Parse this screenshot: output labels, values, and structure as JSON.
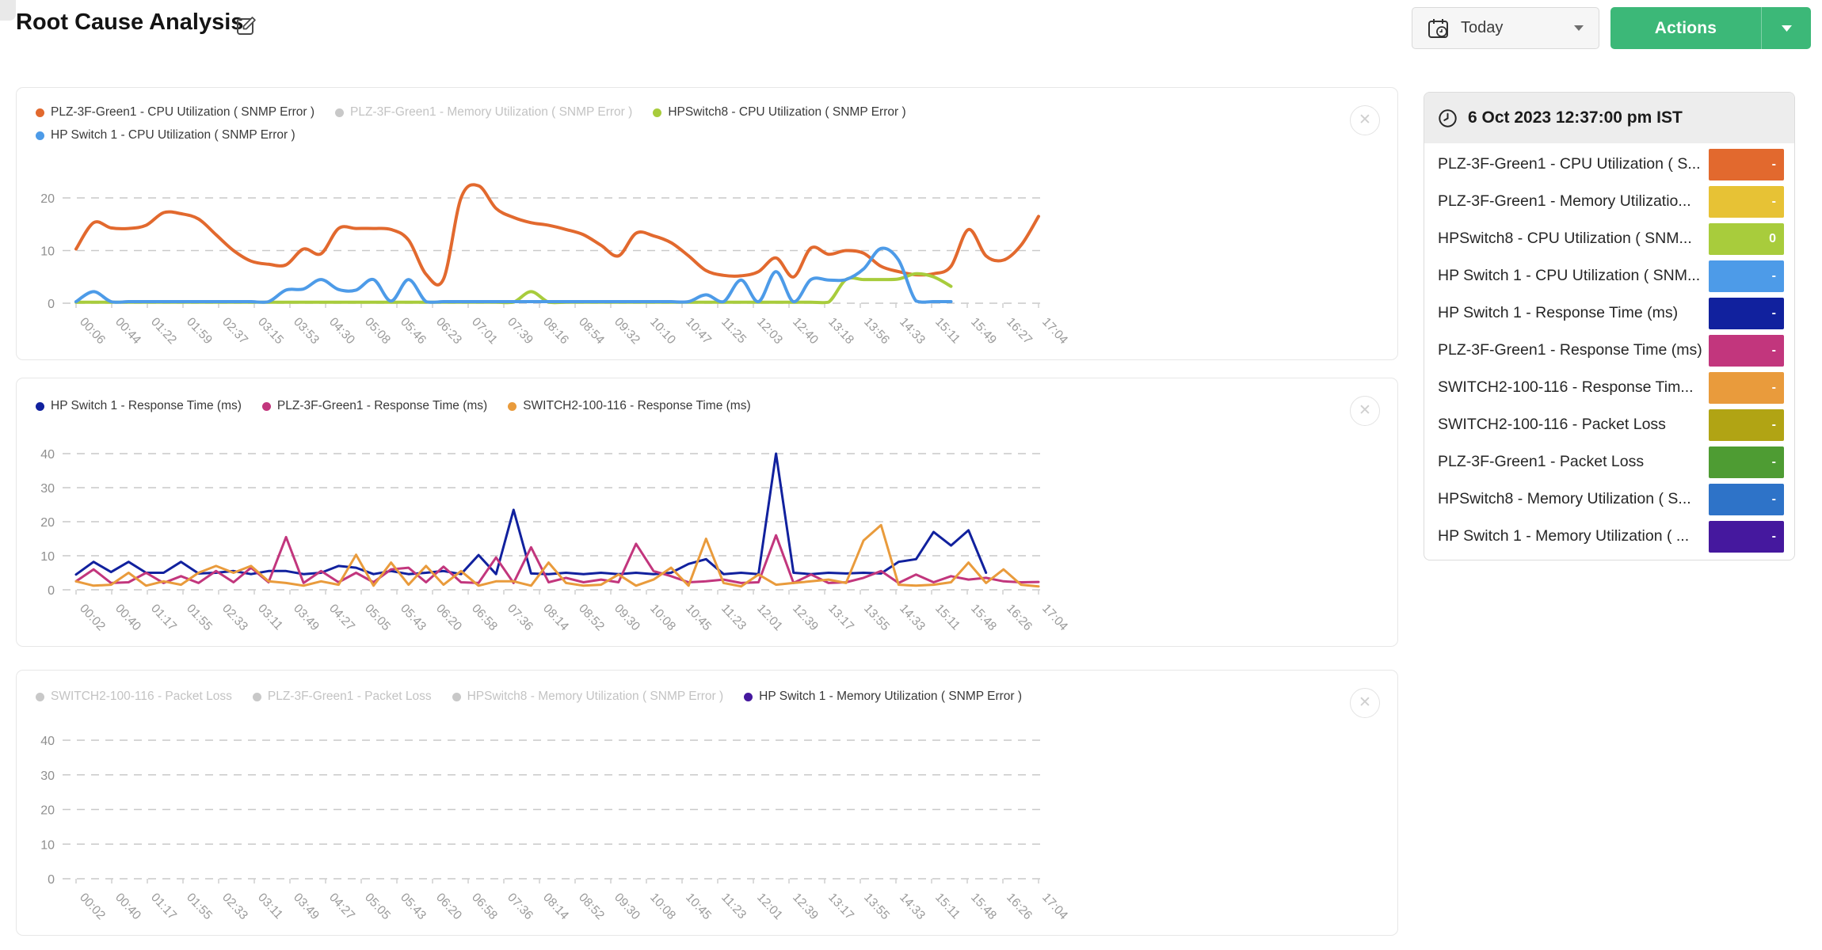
{
  "header": {
    "title": "Root Cause Analysis",
    "time_range_label": "Today",
    "actions_label": "Actions"
  },
  "panel": {
    "timestamp": "6 Oct 2023 12:37:00 pm IST",
    "rows": [
      {
        "label": "PLZ-3F-Green1 - CPU Utilization ( S...",
        "value": "-",
        "color": "#e2692e"
      },
      {
        "label": "PLZ-3F-Green1 - Memory Utilizatio...",
        "value": "-",
        "color": "#e7c235"
      },
      {
        "label": "HPSwitch8 - CPU Utilization ( SNM...",
        "value": "0",
        "color": "#a8cc3c"
      },
      {
        "label": "HP Switch 1 - CPU Utilization ( SNM...",
        "value": "-",
        "color": "#4d9be8"
      },
      {
        "label": "HP Switch 1 - Response Time (ms)",
        "value": "-",
        "color": "#11219e"
      },
      {
        "label": "PLZ-3F-Green1 - Response Time (ms)",
        "value": "-",
        "color": "#c2367d"
      },
      {
        "label": "SWITCH2-100-116 - Response Tim...",
        "value": "-",
        "color": "#e99b3c"
      },
      {
        "label": "SWITCH2-100-116 - Packet Loss",
        "value": "-",
        "color": "#b1a414"
      },
      {
        "label": "PLZ-3F-Green1 - Packet Loss",
        "value": "-",
        "color": "#4e9c33"
      },
      {
        "label": "HPSwitch8 - Memory Utilization ( S...",
        "value": "-",
        "color": "#2e73c8"
      },
      {
        "label": "HP Switch 1 - Memory Utilization ( ...",
        "value": "-",
        "color": "#45189e"
      }
    ]
  },
  "chart_data": [
    {
      "type": "line",
      "smooth": true,
      "ylim": [
        0,
        20
      ],
      "yticks": [
        0,
        10,
        20
      ],
      "grid": "dashed-horizontal",
      "legend_position": "top-left",
      "x_labels": [
        "00:06",
        "00:44",
        "01:22",
        "01:59",
        "02:37",
        "03:15",
        "03:53",
        "04:30",
        "05:08",
        "05:46",
        "06:23",
        "07:01",
        "07:39",
        "08:16",
        "08:54",
        "09:32",
        "10:10",
        "10:47",
        "11:25",
        "12:03",
        "12:40",
        "13:18",
        "13:56",
        "14:33",
        "15:11",
        "15:49",
        "16:27",
        "17:04"
      ],
      "series": [
        {
          "name": "PLZ-3F-Green1 - CPU Utilization ( SNMP Error )",
          "color": "#e2692e",
          "disabled": false,
          "values": [
            10.3,
            15.3,
            14.3,
            14.2,
            14.8,
            17.2,
            17.0,
            16.0,
            13.0,
            10.0,
            8.0,
            7.4,
            7.3,
            10.3,
            9.4,
            14.2,
            14.2,
            14.2,
            14.0,
            12.0,
            5.5,
            4.6,
            20.0,
            22.3,
            18.0,
            16.3,
            15.3,
            14.8,
            14.0,
            13.0,
            11.0,
            9.0,
            13.3,
            12.8,
            11.5,
            9.0,
            6.2,
            5.3,
            5.2,
            6.0,
            8.6,
            5.0,
            10.5,
            9.3,
            10.0,
            9.5,
            7.0,
            6.0,
            5.4,
            5.6,
            7.0,
            14.0,
            9.0,
            8.2,
            11.0,
            16.5
          ]
        },
        {
          "name": "PLZ-3F-Green1 - Memory Utilization ( SNMP Error )",
          "color": "#c8c8c8",
          "disabled": true,
          "values": []
        },
        {
          "name": "HPSwitch8 - CPU Utilization ( SNMP Error )",
          "color": "#a8cc3c",
          "disabled": false,
          "values": [
            0.2,
            0.2,
            0.2,
            0.2,
            0.2,
            0.2,
            0.2,
            0.2,
            0.2,
            0.2,
            0.2,
            0.2,
            0.2,
            0.2,
            0.2,
            0.2,
            0.2,
            0.2,
            0.2,
            0.2,
            0.2,
            0.2,
            0.2,
            0.2,
            0.2,
            0.2,
            2.2,
            0.2,
            0.2,
            0.2,
            0.2,
            0.2,
            0.2,
            0.2,
            0.2,
            0.2,
            0.2,
            0.2,
            0.2,
            0.2,
            0.2,
            0.2,
            0.2,
            0.2,
            4.5,
            4.5,
            4.5,
            4.6,
            5.6,
            5.0,
            3.2,
            null,
            null,
            null,
            null,
            null
          ]
        },
        {
          "name": "HP Switch 1 - CPU Utilization ( SNMP Error )",
          "color": "#4d9be8",
          "disabled": false,
          "values": [
            0.3,
            2.2,
            0.3,
            0.3,
            0.3,
            0.3,
            0.3,
            0.3,
            0.3,
            0.3,
            0.3,
            0.3,
            2.5,
            2.7,
            4.5,
            2.6,
            2.5,
            4.5,
            0.4,
            4.5,
            0.3,
            0.3,
            0.3,
            0.3,
            0.3,
            0.3,
            0.3,
            0.3,
            0.3,
            0.3,
            0.3,
            0.3,
            0.3,
            0.3,
            0.3,
            0.3,
            1.6,
            0.3,
            4.4,
            0.3,
            6.0,
            0.3,
            4.5,
            4.4,
            4.5,
            6.5,
            10.4,
            8.2,
            0.4,
            0.3,
            0.3,
            null,
            null,
            null,
            null,
            null
          ]
        }
      ]
    },
    {
      "type": "line",
      "smooth": false,
      "ylim": [
        0,
        40
      ],
      "yticks": [
        0,
        10,
        20,
        30,
        40
      ],
      "grid": "dashed-horizontal",
      "legend_position": "top-left",
      "x_labels": [
        "00:02",
        "00:40",
        "01:17",
        "01:55",
        "02:33",
        "03:11",
        "03:49",
        "04:27",
        "05:05",
        "05:43",
        "06:20",
        "06:58",
        "07:36",
        "08:14",
        "08:52",
        "09:30",
        "10:08",
        "10:45",
        "11:23",
        "12:01",
        "12:39",
        "13:17",
        "13:55",
        "14:33",
        "15:11",
        "15:48",
        "16:26",
        "17:04"
      ],
      "series": [
        {
          "name": "HP Switch 1 - Response Time (ms)",
          "color": "#11219e",
          "disabled": false,
          "values": [
            4.5,
            8.2,
            5.2,
            8.2,
            5.0,
            5.0,
            8.2,
            4.8,
            5.0,
            5.5,
            4.6,
            5.5,
            5.5,
            4.6,
            5.0,
            7.0,
            6.5,
            4.6,
            5.5,
            4.6,
            5.0,
            5.5,
            4.6,
            10.2,
            4.6,
            23.5,
            4.8,
            4.6,
            5.0,
            4.6,
            5.0,
            4.6,
            5.0,
            4.6,
            5.0,
            7.6,
            9.0,
            4.6,
            5.0,
            4.6,
            40.0,
            5.0,
            4.6,
            5.0,
            4.8,
            5.0,
            4.8,
            8.2,
            9.0,
            17.0,
            13.0,
            17.5,
            5.0,
            null,
            null,
            null
          ]
        },
        {
          "name": "PLZ-3F-Green1 - Response Time (ms)",
          "color": "#c2367d",
          "disabled": false,
          "values": [
            2.5,
            6.0,
            2.0,
            2.2,
            5.0,
            2.0,
            4.0,
            2.0,
            5.5,
            2.2,
            6.5,
            2.2,
            15.5,
            2.0,
            5.5,
            2.2,
            5.0,
            2.2,
            6.0,
            6.5,
            2.2,
            6.8,
            2.2,
            2.0,
            9.5,
            2.0,
            12.5,
            2.2,
            3.5,
            2.2,
            3.0,
            2.2,
            13.5,
            5.5,
            4.0,
            2.2,
            2.5,
            3.0,
            2.0,
            2.2,
            16.0,
            2.0,
            4.5,
            2.0,
            2.2,
            3.5,
            5.5,
            2.0,
            4.5,
            2.2,
            4.0,
            3.0,
            3.5,
            2.5,
            2.2,
            2.3
          ]
        },
        {
          "name": "SWITCH2-100-116 - Response Time (ms)",
          "color": "#e99b3c",
          "disabled": false,
          "values": [
            2.5,
            1.2,
            1.5,
            5.0,
            1.2,
            2.5,
            1.5,
            5.0,
            7.0,
            5.0,
            7.0,
            2.5,
            2.0,
            1.2,
            2.5,
            1.5,
            10.3,
            1.2,
            8.0,
            1.5,
            7.0,
            1.5,
            5.5,
            1.2,
            2.5,
            2.5,
            1.2,
            8.0,
            2.0,
            1.2,
            1.5,
            4.5,
            1.2,
            3.0,
            6.5,
            1.2,
            15.0,
            2.0,
            1.0,
            4.5,
            1.5,
            2.0,
            2.5,
            3.0,
            2.0,
            14.5,
            19.0,
            1.5,
            1.2,
            1.5,
            2.2,
            8.0,
            2.0,
            6.0,
            1.5,
            1.0
          ]
        }
      ]
    },
    {
      "type": "line",
      "smooth": false,
      "ylim": [
        0,
        40
      ],
      "yticks": [
        0,
        10,
        20,
        30,
        40
      ],
      "grid": "dashed-horizontal",
      "legend_position": "top-left",
      "x_labels": [
        "00:02",
        "00:40",
        "01:17",
        "01:55",
        "02:33",
        "03:11",
        "03:49",
        "04:27",
        "05:05",
        "05:43",
        "06:20",
        "06:58",
        "07:36",
        "08:14",
        "08:52",
        "09:30",
        "10:08",
        "10:45",
        "11:23",
        "12:01",
        "12:39",
        "13:17",
        "13:55",
        "14:33",
        "15:11",
        "15:48",
        "16:26",
        "17:04"
      ],
      "series": [
        {
          "name": "SWITCH2-100-116 - Packet Loss",
          "color": "#c8c8c8",
          "disabled": true,
          "values": []
        },
        {
          "name": "PLZ-3F-Green1 - Packet Loss",
          "color": "#c8c8c8",
          "disabled": true,
          "values": []
        },
        {
          "name": "HPSwitch8 - Memory Utilization ( SNMP Error )",
          "color": "#c8c8c8",
          "disabled": true,
          "values": []
        },
        {
          "name": "HP Switch 1 - Memory Utilization ( SNMP Error )",
          "color": "#45189e",
          "disabled": false,
          "values": []
        }
      ]
    }
  ]
}
